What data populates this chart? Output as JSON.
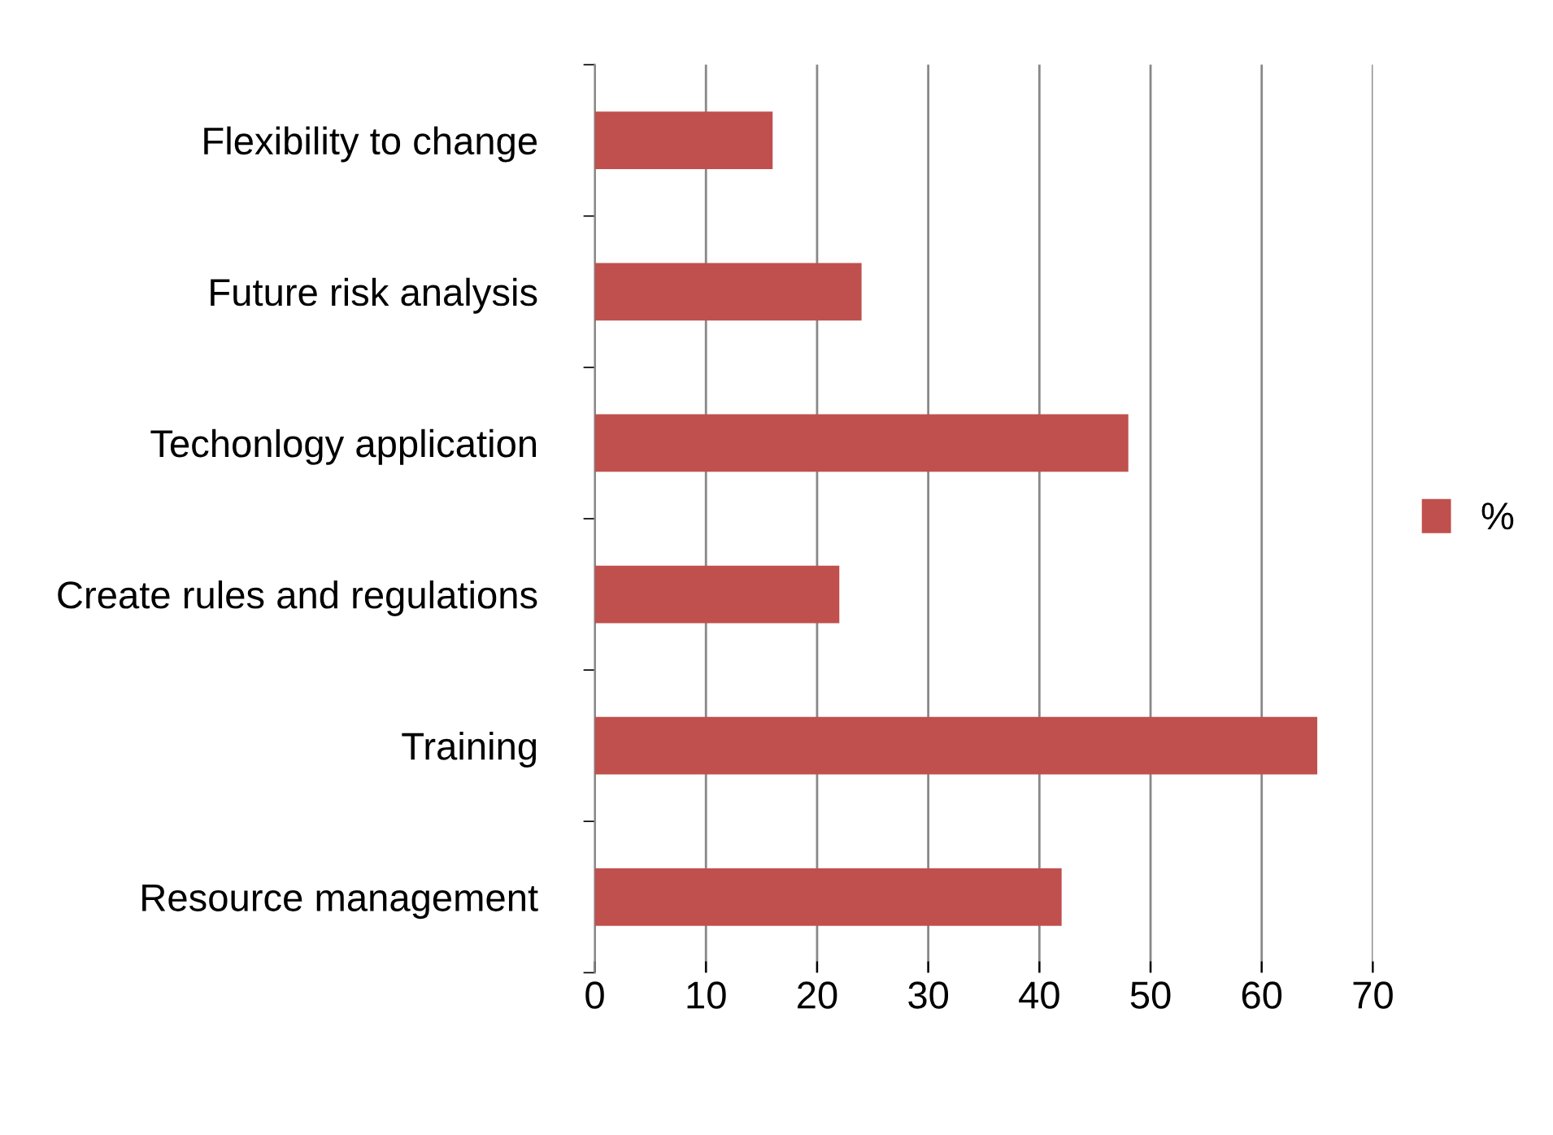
{
  "chart_data": {
    "type": "bar",
    "orientation": "horizontal",
    "categories": [
      "Flexibility to change",
      "Future risk analysis",
      "Techonlogy application",
      "Create rules and regulations",
      "Training",
      "Resource management"
    ],
    "series": [
      {
        "name": "%",
        "color": "#c0504d",
        "values": [
          16,
          24,
          48,
          22,
          65,
          42
        ]
      }
    ],
    "xlim": [
      0,
      70
    ],
    "xticks": [
      0,
      10,
      20,
      30,
      40,
      50,
      60,
      70
    ],
    "grid": "x",
    "legend": "right"
  }
}
